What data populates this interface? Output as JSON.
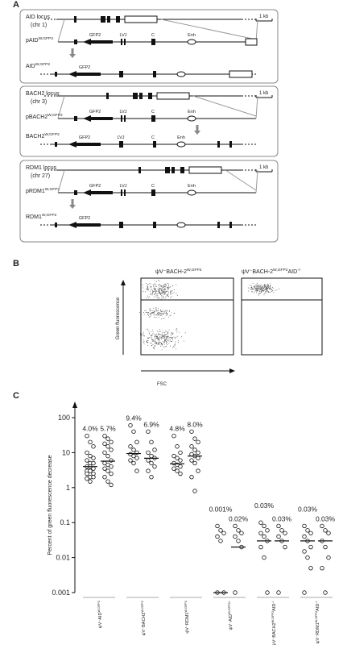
{
  "panel_labels": [
    "A",
    "B",
    "C"
  ],
  "panel_a": {
    "loci": [
      {
        "name": "AID locus",
        "chr": "(chr 1)",
        "scale": "1 kb",
        "construct": [
          "pAID",
          "W,GFP2"
        ],
        "construct_features": [
          "GFP2",
          "LVJ",
          "C",
          "Enh"
        ],
        "result": [
          "AID",
          "W,GFP2"
        ],
        "result_features": [
          "GFP2"
        ]
      },
      {
        "name": "BACH2 locus",
        "chr": "(chr 3)",
        "scale": "1 kb",
        "construct": [
          "pBACH2",
          "W,GFP2"
        ],
        "construct_features": [
          "GFP2",
          "LVJ",
          "C",
          "Enh"
        ],
        "result": [
          "BACH2",
          "W,GFP2"
        ],
        "result_features": [
          "GFP2",
          "LVJ",
          "C",
          "Enh"
        ]
      },
      {
        "name": "RDM1 locus",
        "chr": "(chr 27)",
        "scale": "1 kb",
        "construct": [
          "pRDM1",
          "W,GFP2"
        ],
        "construct_features": [
          "GFP2",
          "LVJ",
          "C",
          "Enh"
        ],
        "result": [
          "RDM1",
          "W,GFP2"
        ],
        "result_features": [
          "GFP2"
        ]
      }
    ]
  },
  "panel_b": {
    "plots": [
      {
        "title": [
          "ψV⁻BACH-2",
          "W,GFP2"
        ]
      },
      {
        "title": [
          "ψV⁻BACH-2",
          "W,GFP2",
          "AID",
          "-/-"
        ]
      }
    ],
    "y_label": "Green fluorescence",
    "x_label": "FSC"
  },
  "chart_data": {
    "type": "strip",
    "y_label": "Percent of green fluorescence decrease",
    "log_scale": true,
    "ylim": [
      0.001,
      100
    ],
    "yticks": [
      0.001,
      0.01,
      0.1,
      1,
      10,
      100
    ],
    "categories": [
      [
        "ψV⁻AID",
        "W,GFP2"
      ],
      [
        "ψV⁻BACH2",
        "W,GFP2"
      ],
      [
        "ψV⁻RDM1",
        "W,GFP2"
      ],
      [
        "ψV⁻AID",
        "W,GFP2/-"
      ],
      [
        "ψV⁻BACH2",
        "W,GFP2",
        "AID",
        "-/-"
      ],
      [
        "ψV⁻RDM1",
        "W,GFP2",
        "AID",
        "-/-"
      ]
    ],
    "series": [
      {
        "values": [
          4.0,
          9.4,
          4.8,
          0.001,
          0.03,
          0.03
        ],
        "value_labels": [
          "4.0%",
          "9.4%",
          "4.8%",
          "0.001%",
          "0.03%",
          "0.03%"
        ],
        "points": [
          [
            30,
            20,
            15,
            10,
            8,
            7,
            6,
            5,
            5,
            4,
            4,
            3.5,
            3,
            3,
            2.5,
            2.5,
            2,
            2,
            1.8,
            1.5
          ],
          [
            60,
            40,
            20,
            15,
            12,
            10,
            9,
            8,
            7,
            6,
            5,
            3
          ],
          [
            30,
            15,
            10,
            8,
            7,
            6,
            5,
            4.5,
            4,
            3.5,
            3,
            2.5
          ],
          [
            0.08,
            0.06,
            0.05,
            0.04,
            0.03,
            0.001,
            0.001
          ],
          [
            0.1,
            0.08,
            0.06,
            0.05,
            0.04,
            0.03,
            0.02,
            0.01,
            0.001
          ],
          [
            0.08,
            0.06,
            0.05,
            0.04,
            0.03,
            0.02,
            0.015,
            0.01,
            0.005,
            0.001
          ]
        ]
      },
      {
        "values": [
          5.7,
          6.9,
          8.0,
          0.02,
          0.03,
          0.03
        ],
        "value_labels": [
          "5.7%",
          "6.9%",
          "8.0%",
          "0.02%",
          "0.03%",
          "0.03%"
        ],
        "points": [
          [
            30,
            25,
            20,
            18,
            15,
            12,
            10,
            8,
            6,
            5,
            4.5,
            4,
            3.5,
            3,
            2.5,
            2,
            1.5,
            1.2
          ],
          [
            40,
            20,
            12,
            10,
            8,
            7,
            6,
            5,
            4,
            3,
            2
          ],
          [
            40,
            25,
            20,
            15,
            12,
            10,
            9,
            8,
            7,
            6,
            5,
            3,
            2,
            0.8
          ],
          [
            0.08,
            0.06,
            0.05,
            0.04,
            0.03,
            0.02,
            0.001
          ],
          [
            0.08,
            0.06,
            0.05,
            0.04,
            0.03,
            0.02,
            0.001
          ],
          [
            0.08,
            0.06,
            0.05,
            0.03,
            0.02,
            0.01,
            0.005,
            0.001
          ]
        ]
      }
    ]
  }
}
